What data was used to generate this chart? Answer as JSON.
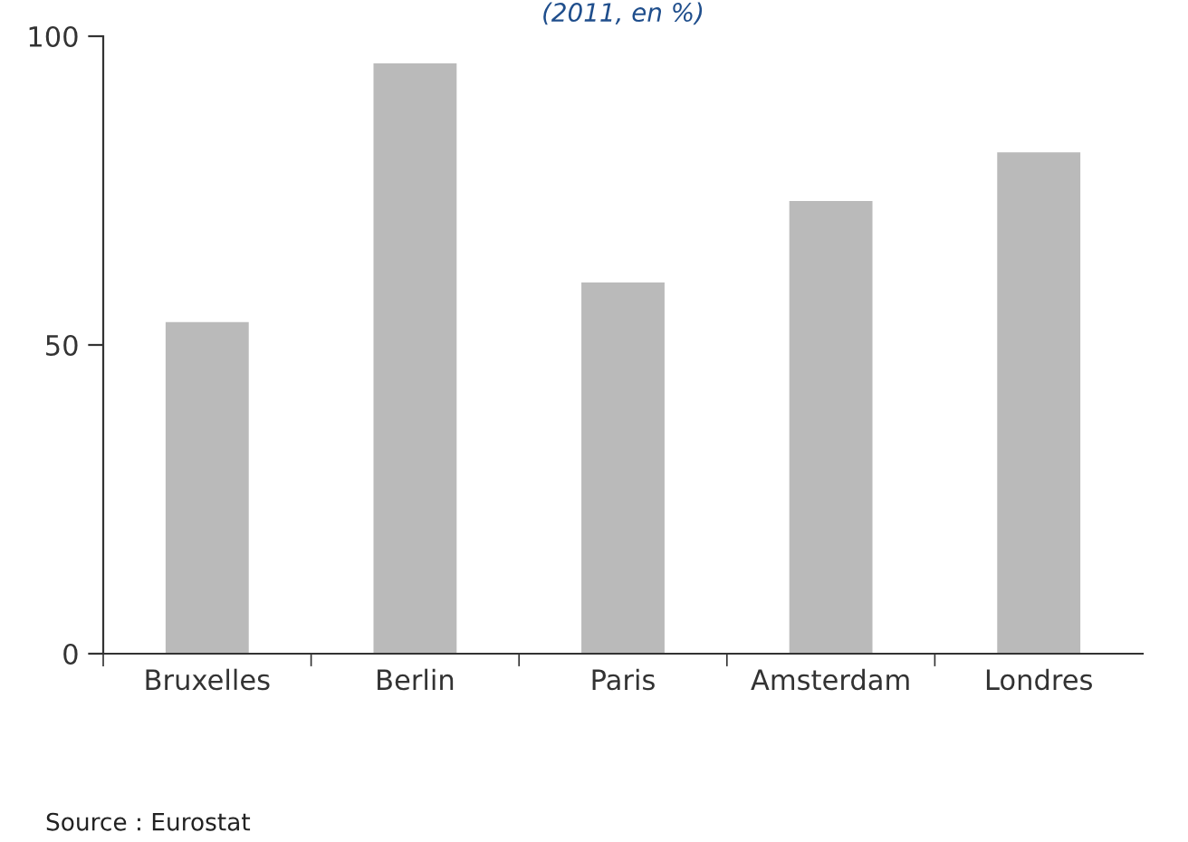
{
  "chart_data": {
    "type": "bar",
    "subtitle": "(2011, en %)",
    "categories": [
      "Bruxelles",
      "Berlin",
      "Paris",
      "Amsterdam",
      "Londres"
    ],
    "values": [
      53.7,
      95.6,
      60.1,
      73.3,
      81.2
    ],
    "color": "#bababa",
    "ylim": [
      0,
      100
    ],
    "yticks": [
      0,
      50,
      100
    ],
    "grid": false,
    "annotations": [
      "Source : Eurostat"
    ]
  }
}
